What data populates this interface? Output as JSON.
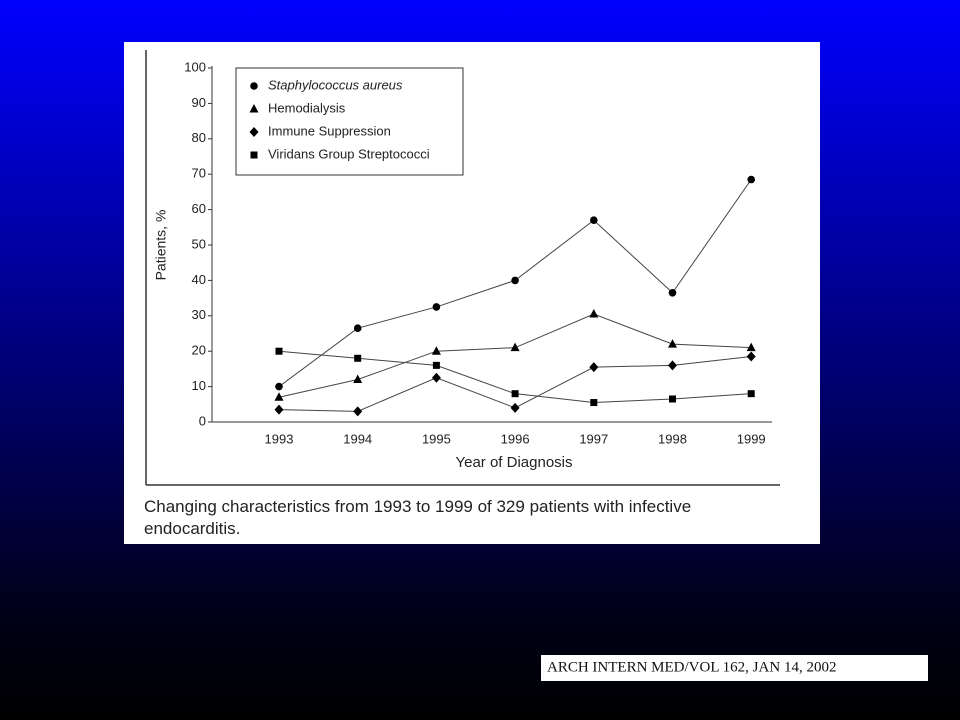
{
  "chart_data": {
    "type": "line",
    "categories": [
      "1993",
      "1994",
      "1995",
      "1996",
      "1997",
      "1998",
      "1999"
    ],
    "series": [
      {
        "name": "Staphylococcus aureus",
        "color": "#000000",
        "marker": "circle",
        "values": [
          10,
          26.5,
          32.5,
          40,
          57,
          36.5,
          68.5
        ]
      },
      {
        "name": "Hemodialysis",
        "color": "#000000",
        "marker": "triangle",
        "values": [
          7,
          12,
          20,
          21,
          30.5,
          22,
          21
        ]
      },
      {
        "name": "Immune Suppression",
        "color": "#000000",
        "marker": "diamond",
        "values": [
          3.5,
          3,
          12.5,
          4,
          15.5,
          16,
          18.5
        ]
      },
      {
        "name": "Viridans Group Streptococci",
        "color": "#000000",
        "marker": "square",
        "values": [
          20,
          18,
          16,
          8,
          5.5,
          6.5,
          8
        ]
      }
    ],
    "xlabel": "Year of Diagnosis",
    "ylabel": "Patients, %",
    "ylim": [
      0,
      100
    ],
    "yticks": [
      0,
      10,
      20,
      30,
      40,
      50,
      60,
      70,
      80,
      90,
      100
    ],
    "legend": "top-left",
    "caption": "Changing characteristics from 1993 to 1999 of 329 patients with infective endocarditis."
  },
  "citation": "ARCH INTERN MED/VOL 162,  JAN 14, 2002"
}
